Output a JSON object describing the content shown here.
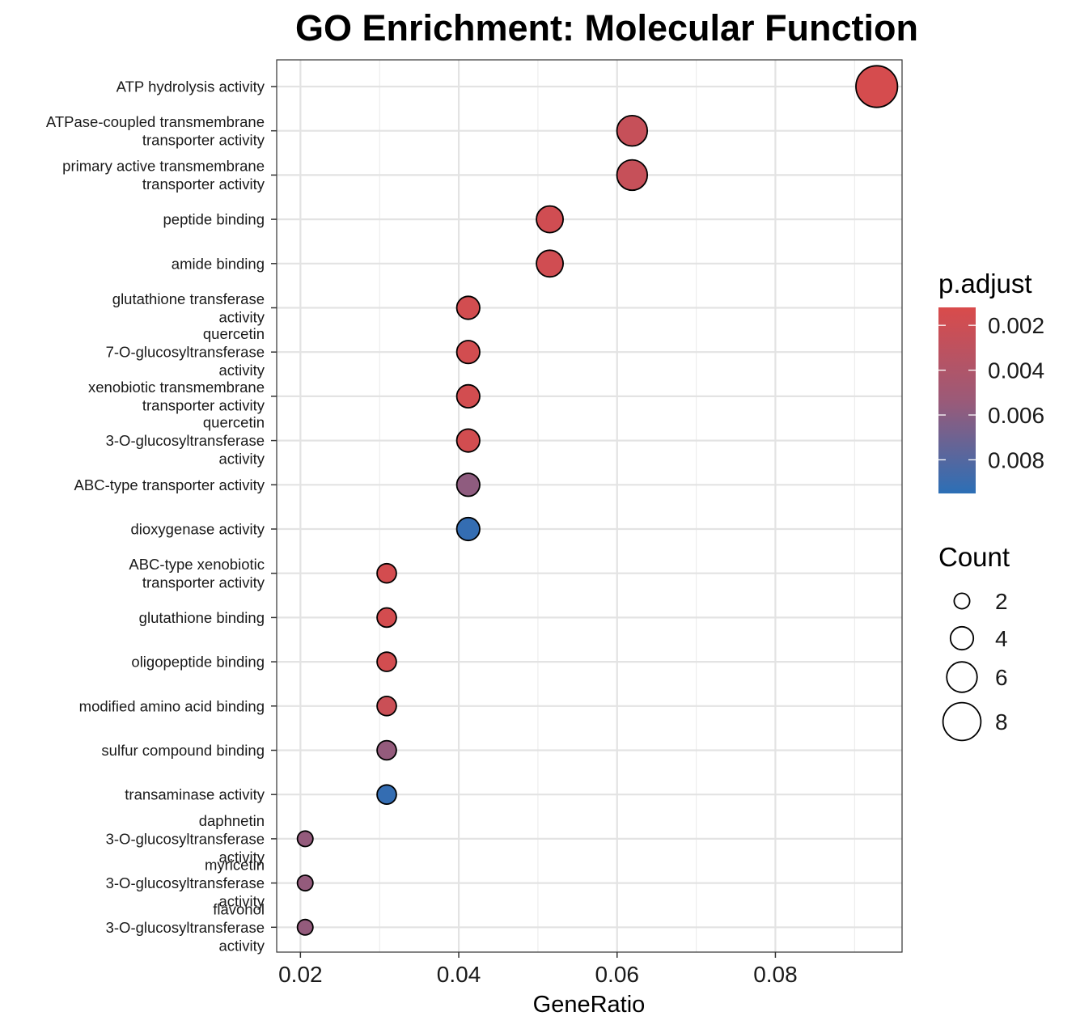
{
  "chart_data": {
    "type": "scatter",
    "title": "GO Enrichment: Molecular Function",
    "xlabel": "GeneRatio",
    "ylabel": "",
    "xlim": [
      0.017,
      0.096
    ],
    "xticks": [
      0.02,
      0.04,
      0.06,
      0.08
    ],
    "xtick_labels": [
      "0.02",
      "0.04",
      "0.06",
      "0.08"
    ],
    "grid": true,
    "legend_position": "right",
    "categories": [
      [
        "ATP hydrolysis activity"
      ],
      [
        "ATPase-coupled transmembrane",
        "transporter activity"
      ],
      [
        "primary active transmembrane",
        "transporter activity"
      ],
      [
        "peptide binding"
      ],
      [
        "amide binding"
      ],
      [
        "glutathione transferase",
        "activity"
      ],
      [
        "quercetin",
        "7-O-glucosyltransferase",
        "activity"
      ],
      [
        "xenobiotic transmembrane",
        "transporter activity"
      ],
      [
        "quercetin",
        "3-O-glucosyltransferase",
        "activity"
      ],
      [
        "ABC-type transporter activity"
      ],
      [
        "dioxygenase activity"
      ],
      [
        "ABC-type xenobiotic",
        "transporter activity"
      ],
      [
        "glutathione binding"
      ],
      [
        "oligopeptide binding"
      ],
      [
        "modified amino acid binding"
      ],
      [
        "sulfur compound binding"
      ],
      [
        "transaminase activity"
      ],
      [
        "daphnetin",
        "3-O-glucosyltransferase",
        "activity"
      ],
      [
        "myricetin",
        "3-O-glucosyltransferase",
        "activity"
      ],
      [
        "flavonol",
        "3-O-glucosyltransferase",
        "activity"
      ]
    ],
    "points": [
      {
        "gene_ratio": 0.0928,
        "count": 9,
        "p_adjust": 0.0015
      },
      {
        "gene_ratio": 0.0619,
        "count": 6,
        "p_adjust": 0.0025
      },
      {
        "gene_ratio": 0.0619,
        "count": 6,
        "p_adjust": 0.0025
      },
      {
        "gene_ratio": 0.0515,
        "count": 5,
        "p_adjust": 0.0018
      },
      {
        "gene_ratio": 0.0515,
        "count": 5,
        "p_adjust": 0.0018
      },
      {
        "gene_ratio": 0.0412,
        "count": 4,
        "p_adjust": 0.0017
      },
      {
        "gene_ratio": 0.0412,
        "count": 4,
        "p_adjust": 0.0017
      },
      {
        "gene_ratio": 0.0412,
        "count": 4,
        "p_adjust": 0.0017
      },
      {
        "gene_ratio": 0.0412,
        "count": 4,
        "p_adjust": 0.0017
      },
      {
        "gene_ratio": 0.0412,
        "count": 4,
        "p_adjust": 0.0058
      },
      {
        "gene_ratio": 0.0412,
        "count": 4,
        "p_adjust": 0.0092
      },
      {
        "gene_ratio": 0.0309,
        "count": 3,
        "p_adjust": 0.0016
      },
      {
        "gene_ratio": 0.0309,
        "count": 3,
        "p_adjust": 0.0016
      },
      {
        "gene_ratio": 0.0309,
        "count": 3,
        "p_adjust": 0.0017
      },
      {
        "gene_ratio": 0.0309,
        "count": 3,
        "p_adjust": 0.0022
      },
      {
        "gene_ratio": 0.0309,
        "count": 3,
        "p_adjust": 0.0056
      },
      {
        "gene_ratio": 0.0309,
        "count": 3,
        "p_adjust": 0.0092
      },
      {
        "gene_ratio": 0.0206,
        "count": 2,
        "p_adjust": 0.0056
      },
      {
        "gene_ratio": 0.0206,
        "count": 2,
        "p_adjust": 0.0056
      },
      {
        "gene_ratio": 0.0206,
        "count": 2,
        "p_adjust": 0.0056
      }
    ],
    "color_legend": {
      "title": "p.adjust",
      "low_color": "#d94b4b",
      "high_color": "#2c6fb6",
      "range": [
        0.0012,
        0.0095
      ],
      "breaks": [
        0.002,
        0.004,
        0.006,
        0.008
      ],
      "break_labels": [
        "0.002",
        "0.004",
        "0.006",
        "0.008"
      ]
    },
    "size_legend": {
      "title": "Count",
      "breaks": [
        2,
        4,
        6,
        8
      ],
      "break_labels": [
        "2",
        "4",
        "6",
        "8"
      ]
    }
  }
}
